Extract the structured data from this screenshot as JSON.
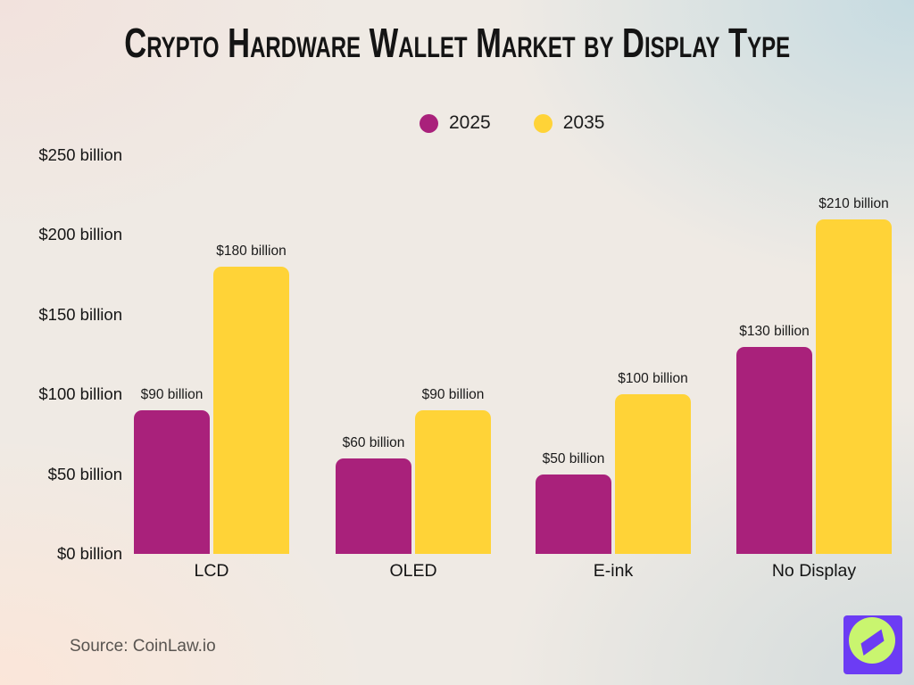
{
  "title": "Crypto Hardware Wallet Market by Display Type",
  "legend": [
    {
      "label": "2025",
      "color": "#A9217B"
    },
    {
      "label": "2035",
      "color": "#FFD337"
    }
  ],
  "chart_data": {
    "type": "bar",
    "title": "Crypto Hardware Wallet Market by Display Type",
    "categories": [
      "LCD",
      "OLED",
      "E-ink",
      "No Display"
    ],
    "series": [
      {
        "name": "2025",
        "color": "#A9217B",
        "values": [
          90,
          60,
          50,
          130
        ],
        "labels": [
          "$90 billion",
          "$60 billion",
          "$50 billion",
          "$130 billion"
        ]
      },
      {
        "name": "2035",
        "color": "#FFD337",
        "values": [
          180,
          90,
          100,
          210
        ],
        "labels": [
          "$180 billion",
          "$90 billion",
          "$100 billion",
          "$210 billion"
        ]
      }
    ],
    "xlabel": "",
    "ylabel": "",
    "ylim": [
      0,
      250
    ],
    "yticks": [
      {
        "value": 0,
        "label": "$0 billion"
      },
      {
        "value": 50,
        "label": "$50 billion"
      },
      {
        "value": 100,
        "label": "$100 billion"
      },
      {
        "value": 150,
        "label": "$150 billion"
      },
      {
        "value": 200,
        "label": "$200 billion"
      },
      {
        "value": 250,
        "label": "$250 billion"
      }
    ],
    "grid": false,
    "legend_position": "top-center"
  },
  "source": {
    "text": "Source: CoinLaw.io"
  },
  "logo": {
    "name": "coinlaw-compass-logo",
    "bg_color": "#6C3CF4",
    "circle_color": "#C9F56F",
    "needle_color": "#6C3CF4"
  }
}
